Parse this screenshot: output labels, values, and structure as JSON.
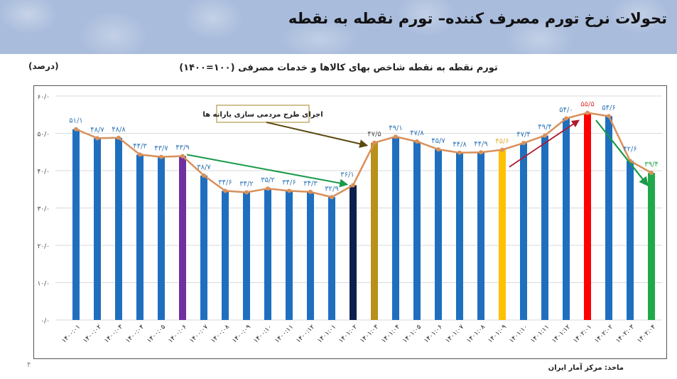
{
  "header": {
    "title": "تحولات نرخ تورم مصرف کننده– تورم نقطه به نقطه"
  },
  "chart": {
    "subtitle": "تورم نقطه به نقطه شاخص بهای کالاها و خدمات مصرفی (۱۰۰=۱۴۰۰)",
    "unit": "(درصد)",
    "annotation": "اجرای طرح مردمی سازی یارانه ها",
    "source": "ماخذ: مرکز آمار ایران",
    "page_number": "۴"
  },
  "colors": {
    "bar_default": "#1f6fbf",
    "bar_purple": "#7030a0",
    "bar_navy": "#0d1f4d",
    "bar_olive": "#b8901a",
    "bar_yellow": "#ffc000",
    "bar_red": "#ff0000",
    "bar_green": "#21a84a",
    "line": "#d9905a",
    "label_default": "#2e75b6",
    "label_yellow": "#e2b235",
    "label_red": "#e04040",
    "label_green": "#21a84a",
    "arrow_green": "#1a9a4a",
    "arrow_red": "#b0182e",
    "arrow_olive": "#5a4a10"
  },
  "chart_data": {
    "type": "bar",
    "title": "تورم نقطه به نقطه شاخص بهای کالاها و خدمات مصرفی (۱۰۰=۱۴۰۰)",
    "xlabel": "",
    "ylabel": "(درصد)",
    "ylim": [
      0,
      60
    ],
    "yticks": [
      "۰/۰",
      "۱۰/۰",
      "۲۰/۰",
      "۳۰/۰",
      "۴۰/۰",
      "۵۰/۰",
      "۶۰/۰"
    ],
    "grid": true,
    "categories": [
      "۱۴۰۰:۰۱",
      "۱۴۰۰:۰۲",
      "۱۴۰۰:۰۳",
      "۱۴۰۰:۰۴",
      "۱۴۰۰:۰۵",
      "۱۴۰۰:۰۶",
      "۱۴۰۰:۰۷",
      "۱۴۰۰:۰۸",
      "۱۴۰۰:۰۹",
      "۱۴۰۰:۱۰",
      "۱۴۰۰:۱۱",
      "۱۴۰۰:۱۲",
      "۱۴۰۱:۰۱",
      "۱۴۰۱:۰۲",
      "۱۴۰۱:۰۳",
      "۱۴۰۱:۰۴",
      "۱۴۰۱:۰۵",
      "۱۴۰۱:۰۶",
      "۱۴۰۱:۰۷",
      "۱۴۰۱:۰۸",
      "۱۴۰۱:۰۹",
      "۱۴۰۱:۱۰",
      "۱۴۰۱:۱۱",
      "۱۴۰۱:۱۲",
      "۱۴۰۲:۰۱",
      "۱۴۰۲:۰۲",
      "۱۴۰۲:۰۳",
      "۱۴۰۲:۰۴"
    ],
    "values": [
      51.1,
      48.7,
      48.8,
      44.3,
      43.7,
      43.9,
      38.7,
      34.6,
      34.2,
      35.2,
      34.6,
      34.3,
      32.9,
      36.1,
      47.5,
      49.1,
      47.8,
      45.7,
      44.8,
      44.9,
      45.6,
      47.4,
      49.4,
      54.0,
      55.5,
      54.6,
      42.6,
      39.4
    ],
    "value_labels": [
      "۵۱/۱",
      "۴۸/۷",
      "۴۸/۸",
      "۴۴/۳",
      "۴۳/۷",
      "۴۳/۹",
      "۳۸/۷",
      "۳۴/۶",
      "۳۴/۲",
      "۳۵/۲",
      "۳۴/۶",
      "۳۴/۳",
      "۳۲/۹",
      "۳۶/۱",
      "۴۷/۵",
      "۴۹/۱",
      "۴۷/۸",
      "۴۵/۷",
      "۴۴/۸",
      "۴۴/۹",
      "۴۵/۶",
      "۴۷/۴",
      "۴۹/۴",
      "۵۴/۰",
      "۵۵/۵",
      "۵۴/۶",
      "۴۲/۶",
      "۳۹/۴"
    ],
    "bar_colors": [
      "default",
      "default",
      "default",
      "default",
      "default",
      "purple",
      "default",
      "default",
      "default",
      "default",
      "default",
      "default",
      "default",
      "navy",
      "olive",
      "default",
      "default",
      "default",
      "default",
      "default",
      "yellow",
      "default",
      "default",
      "default",
      "red",
      "default",
      "default",
      "green"
    ],
    "series": [
      {
        "name": "bars",
        "type": "bar"
      },
      {
        "name": "trend line",
        "type": "line"
      }
    ],
    "annotations": [
      {
        "text": "اجرای طرح مردمی سازی یارانه ها",
        "points_to": "۱۴۰۱:۰۳"
      },
      {
        "arrow": "green",
        "from": "۱۴۰۰:۰۶",
        "to": "۱۴۰۱:۰۲"
      },
      {
        "arrow": "red",
        "from": "۱۴۰۱:۰۹",
        "to": "۱۴۰۲:۰۱"
      },
      {
        "arrow": "green",
        "from": "۱۴۰۲:۰۲",
        "to": "۱۴۰۲:۰۴"
      }
    ]
  }
}
